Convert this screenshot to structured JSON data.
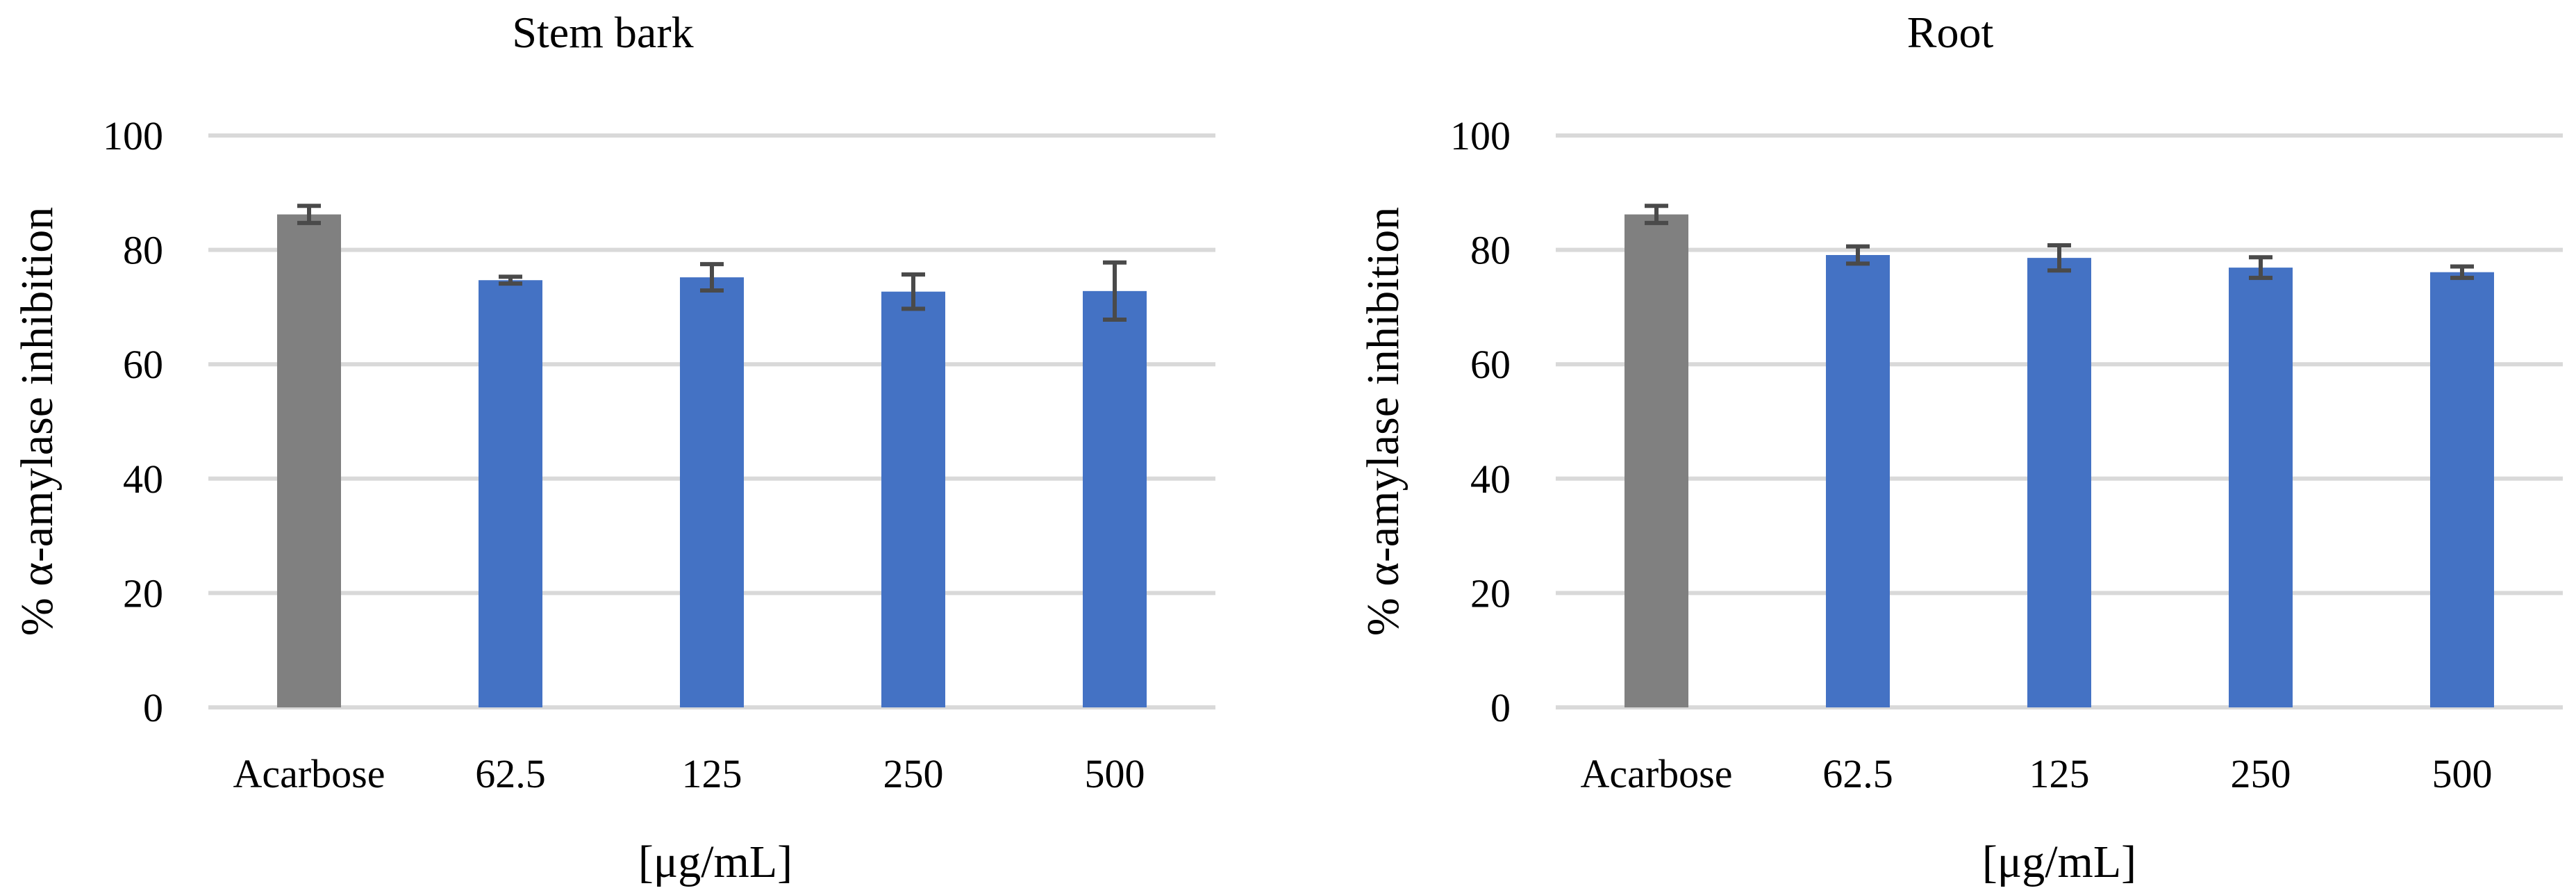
{
  "chart_data": [
    {
      "type": "bar",
      "title": "Stem bark",
      "xlabel": "[μg/mL]",
      "ylabel": "% α-amylase inhibition",
      "ylim": [
        0,
        100
      ],
      "yticks": [
        "0",
        "20",
        "40",
        "60",
        "80",
        "100"
      ],
      "grid": true,
      "categories": [
        "Acarbose",
        "62.5",
        "125",
        "250",
        "500"
      ],
      "values": [
        86.2,
        74.7,
        75.2,
        72.7,
        72.8
      ],
      "errors": [
        1.5,
        0.6,
        2.3,
        3.0,
        5.0
      ],
      "colors": [
        "#808080",
        "#4472c4",
        "#4472c4",
        "#4472c4",
        "#4472c4"
      ]
    },
    {
      "type": "bar",
      "title": "Root",
      "xlabel": "[μg/mL]",
      "ylabel": "% α-amylase inhibition",
      "ylim": [
        0,
        100
      ],
      "yticks": [
        "0",
        "20",
        "40",
        "60",
        "80",
        "100"
      ],
      "grid": true,
      "categories": [
        "Acarbose",
        "62.5",
        "125",
        "250",
        "500"
      ],
      "values": [
        86.2,
        79.1,
        78.6,
        76.9,
        76.1
      ],
      "errors": [
        1.5,
        1.5,
        2.2,
        1.8,
        1.0
      ],
      "colors": [
        "#808080",
        "#4472c4",
        "#4472c4",
        "#4472c4",
        "#4472c4"
      ]
    }
  ]
}
